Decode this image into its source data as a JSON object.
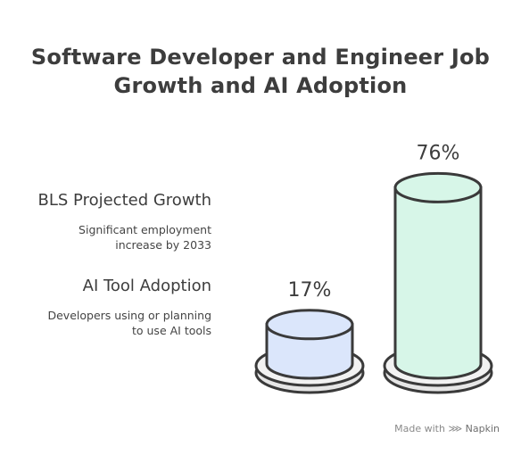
{
  "title_line1": "Software Developer and Engineer Job",
  "title_line2": "Growth and AI Adoption",
  "legend": [
    {
      "title": "BLS Projected Growth",
      "desc_line1": "Significant employment",
      "desc_line2": "increase by 2033"
    },
    {
      "title": "AI Tool Adoption",
      "desc_line1": "Developers using or planning",
      "desc_line2": "to use AI tools"
    }
  ],
  "footer": {
    "made_with": "Made with",
    "brand": "Napkin"
  },
  "colors": {
    "bar_blue": "#dbe6fb",
    "bar_green": "#d7f6e8",
    "outline": "#3a3a3a",
    "base": "#e6e6e6"
  },
  "chart_data": {
    "type": "bar",
    "categories": [
      "AI Tool Adoption",
      "BLS Projected Growth"
    ],
    "values": [
      17,
      76
    ],
    "value_labels": [
      "17%",
      "76%"
    ],
    "colors": [
      "#dbe6fb",
      "#d7f6e8"
    ],
    "ylim": [
      0,
      100
    ]
  }
}
